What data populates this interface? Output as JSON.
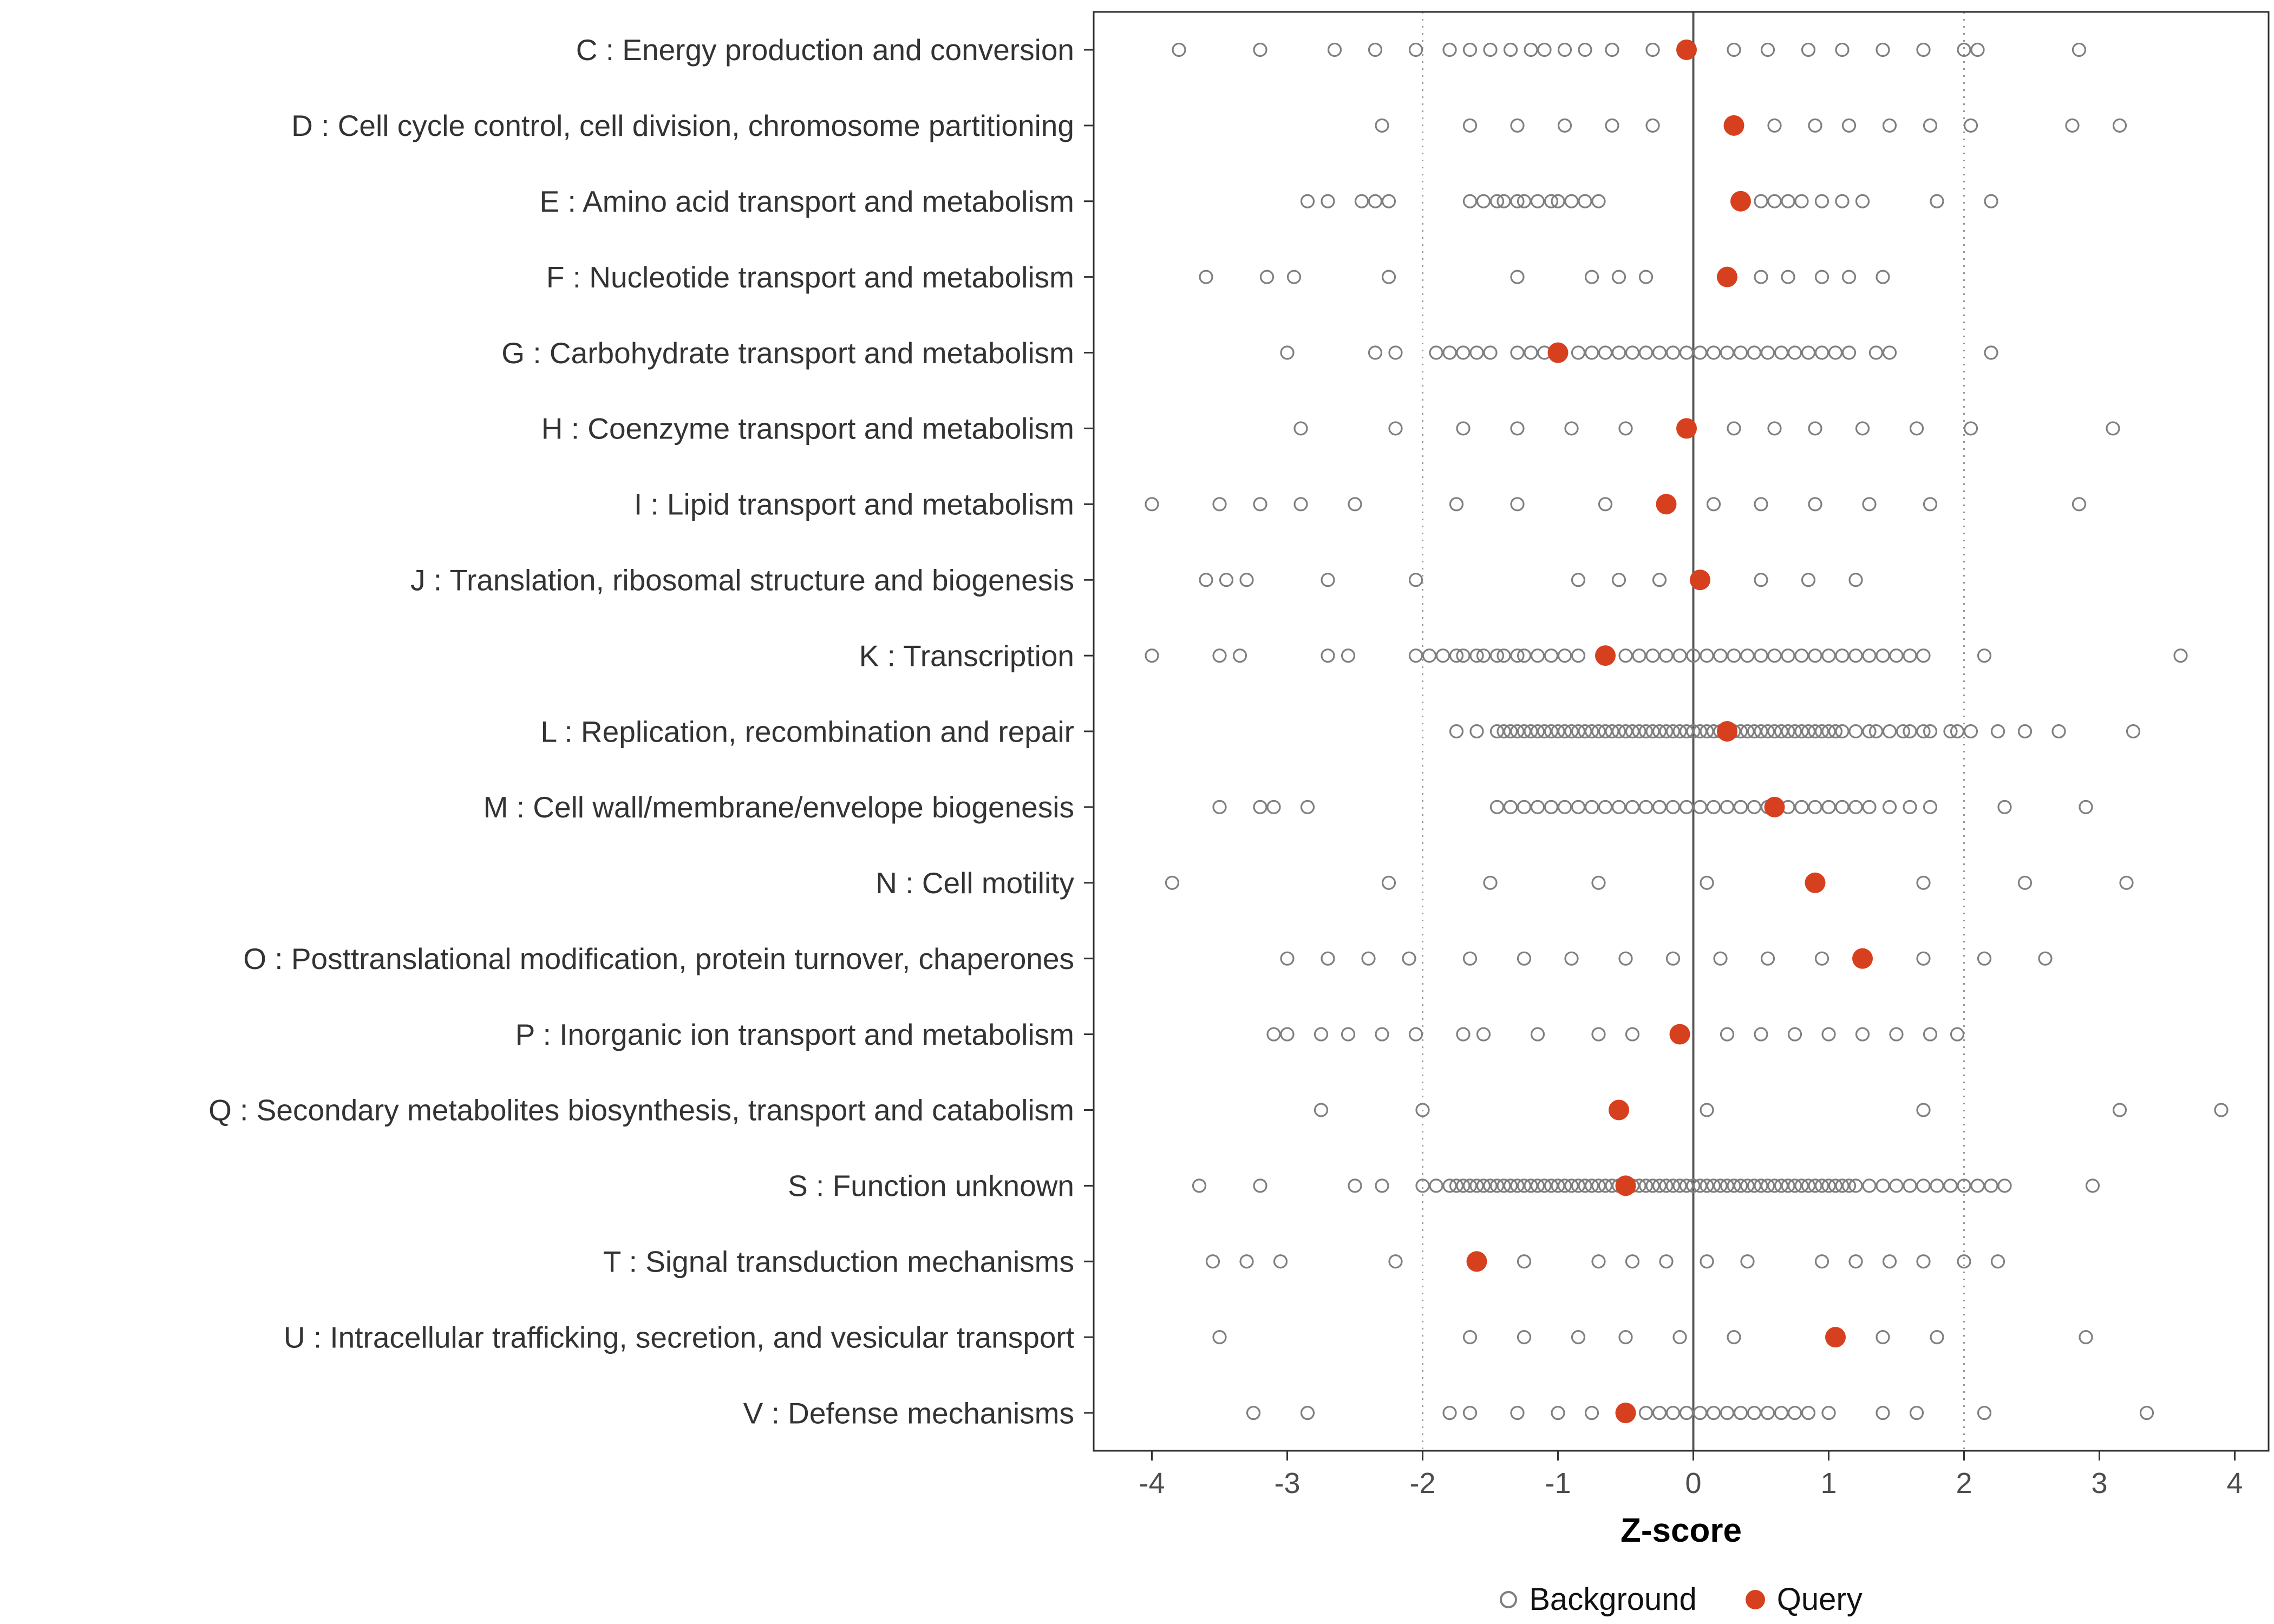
{
  "chart_data": {
    "type": "scatter",
    "title": "",
    "xlabel": "Z-score",
    "xlim": [
      -4.43,
      4.25
    ],
    "xticks": [
      -4,
      -3,
      -2,
      -1,
      0,
      1,
      2,
      3,
      4
    ],
    "reference_lines": {
      "solid": [
        0
      ],
      "dotted": [
        -2,
        2
      ]
    },
    "colors": {
      "background": "#7f7f7f",
      "query": "#d7401e",
      "axis_text": "#4d4d4d",
      "label_text": "#333333",
      "panel_border": "#2f2f2f",
      "zero_line": "#555555",
      "dotted_line": "#999999"
    },
    "legend": [
      {
        "label": "Background",
        "marker": "open-circle"
      },
      {
        "label": "Query",
        "marker": "filled-circle"
      }
    ],
    "legend_position": "bottom",
    "grid": "off",
    "categories": [
      {
        "label": "C : Energy production and conversion",
        "query": -0.05,
        "background": [
          -3.8,
          -3.2,
          -2.65,
          -2.35,
          -2.05,
          -1.8,
          -1.65,
          -1.5,
          -1.35,
          -1.2,
          -1.1,
          -0.95,
          -0.8,
          -0.6,
          -0.3,
          0.3,
          0.55,
          0.85,
          1.1,
          1.4,
          1.7,
          2.0,
          2.1,
          2.85
        ]
      },
      {
        "label": "D : Cell cycle control, cell division, chromosome partitioning",
        "query": 0.3,
        "background": [
          -2.3,
          -1.65,
          -1.3,
          -0.95,
          -0.6,
          -0.3,
          0.6,
          0.9,
          1.15,
          1.45,
          1.75,
          2.05,
          2.8,
          3.15
        ]
      },
      {
        "label": "E : Amino acid transport and metabolism",
        "query": 0.35,
        "background": [
          -2.85,
          -2.7,
          -2.45,
          -2.35,
          -2.25,
          -1.65,
          -1.55,
          -1.45,
          -1.4,
          -1.3,
          -1.25,
          -1.15,
          -1.05,
          -1.0,
          -0.9,
          -0.8,
          -0.7,
          0.5,
          0.6,
          0.7,
          0.8,
          0.95,
          1.1,
          1.25,
          1.8,
          2.2
        ]
      },
      {
        "label": "F : Nucleotide transport and metabolism",
        "query": 0.25,
        "background": [
          -3.6,
          -3.15,
          -2.95,
          -2.25,
          -1.3,
          -0.75,
          -0.55,
          -0.35,
          0.5,
          0.7,
          0.95,
          1.15,
          1.4
        ]
      },
      {
        "label": "G : Carbohydrate transport and metabolism",
        "query": -1.0,
        "background": [
          -3.0,
          -2.35,
          -2.2,
          -1.9,
          -1.8,
          -1.7,
          -1.6,
          -1.5,
          -1.3,
          -1.2,
          -1.1,
          -0.85,
          -0.75,
          -0.65,
          -0.55,
          -0.45,
          -0.35,
          -0.25,
          -0.15,
          -0.05,
          0.05,
          0.15,
          0.25,
          0.35,
          0.45,
          0.55,
          0.65,
          0.75,
          0.85,
          0.95,
          1.05,
          1.15,
          1.35,
          1.45,
          2.2
        ]
      },
      {
        "label": "H : Coenzyme transport and metabolism",
        "query": -0.05,
        "background": [
          -2.9,
          -2.2,
          -1.7,
          -1.3,
          -0.9,
          -0.5,
          0.3,
          0.6,
          0.9,
          1.25,
          1.65,
          2.05,
          3.1
        ]
      },
      {
        "label": "I : Lipid transport and metabolism",
        "query": -0.2,
        "background": [
          -4.0,
          -3.5,
          -3.2,
          -2.9,
          -2.5,
          -1.75,
          -1.3,
          -0.65,
          0.15,
          0.5,
          0.9,
          1.3,
          1.75,
          2.85
        ]
      },
      {
        "label": "J : Translation, ribosomal structure and biogenesis",
        "query": 0.05,
        "background": [
          -3.6,
          -3.45,
          -3.3,
          -2.7,
          -2.05,
          -0.85,
          -0.55,
          -0.25,
          0.5,
          0.85,
          1.2
        ]
      },
      {
        "label": "K : Transcription",
        "query": -0.65,
        "background": [
          -4.0,
          -3.5,
          -3.35,
          -2.7,
          -2.55,
          -2.05,
          -1.95,
          -1.85,
          -1.75,
          -1.7,
          -1.6,
          -1.55,
          -1.45,
          -1.4,
          -1.3,
          -1.25,
          -1.15,
          -1.05,
          -0.95,
          -0.85,
          -0.5,
          -0.4,
          -0.3,
          -0.2,
          -0.1,
          0.0,
          0.1,
          0.2,
          0.3,
          0.4,
          0.5,
          0.6,
          0.7,
          0.8,
          0.9,
          1.0,
          1.1,
          1.2,
          1.3,
          1.4,
          1.5,
          1.6,
          1.7,
          2.15,
          3.6
        ]
      },
      {
        "label": "L : Replication, recombination and repair",
        "query": 0.25,
        "background": [
          -1.75,
          -1.6,
          -1.45,
          -1.4,
          -1.35,
          -1.3,
          -1.25,
          -1.2,
          -1.15,
          -1.1,
          -1.05,
          -1.0,
          -0.95,
          -0.9,
          -0.85,
          -0.8,
          -0.75,
          -0.7,
          -0.65,
          -0.6,
          -0.55,
          -0.5,
          -0.45,
          -0.4,
          -0.35,
          -0.3,
          -0.25,
          -0.2,
          -0.15,
          -0.1,
          -0.05,
          0.0,
          0.05,
          0.1,
          0.15,
          0.2,
          0.3,
          0.35,
          0.4,
          0.45,
          0.5,
          0.55,
          0.6,
          0.65,
          0.7,
          0.75,
          0.8,
          0.85,
          0.9,
          0.95,
          1.0,
          1.05,
          1.1,
          1.2,
          1.3,
          1.35,
          1.45,
          1.55,
          1.6,
          1.7,
          1.75,
          1.9,
          1.95,
          2.05,
          2.25,
          2.45,
          2.7,
          3.25
        ]
      },
      {
        "label": "M : Cell wall/membrane/envelope biogenesis",
        "query": 0.6,
        "background": [
          -3.5,
          -3.2,
          -3.1,
          -2.85,
          -1.45,
          -1.35,
          -1.25,
          -1.15,
          -1.05,
          -0.95,
          -0.85,
          -0.75,
          -0.65,
          -0.55,
          -0.45,
          -0.35,
          -0.25,
          -0.15,
          -0.05,
          0.05,
          0.15,
          0.25,
          0.35,
          0.45,
          0.55,
          0.7,
          0.8,
          0.9,
          1.0,
          1.1,
          1.2,
          1.3,
          1.45,
          1.6,
          1.75,
          2.3,
          2.9
        ]
      },
      {
        "label": "N : Cell motility",
        "query": 0.9,
        "background": [
          -3.85,
          -2.25,
          -1.5,
          -0.7,
          0.1,
          1.7,
          2.45,
          3.2
        ]
      },
      {
        "label": "O : Posttranslational modification, protein turnover, chaperones",
        "query": 1.25,
        "background": [
          -3.0,
          -2.7,
          -2.4,
          -2.1,
          -1.65,
          -1.25,
          -0.9,
          -0.5,
          -0.15,
          0.2,
          0.55,
          0.95,
          1.7,
          2.15,
          2.6
        ]
      },
      {
        "label": "P : Inorganic ion transport and metabolism",
        "query": -0.1,
        "background": [
          -3.1,
          -3.0,
          -2.75,
          -2.55,
          -2.3,
          -2.05,
          -1.7,
          -1.55,
          -1.15,
          -0.7,
          -0.45,
          0.25,
          0.5,
          0.75,
          1.0,
          1.25,
          1.5,
          1.75,
          1.95
        ]
      },
      {
        "label": "Q : Secondary metabolites biosynthesis, transport and catabolism",
        "query": -0.55,
        "background": [
          -2.75,
          -2.0,
          0.1,
          1.7,
          3.15,
          3.9
        ]
      },
      {
        "label": "S : Function unknown",
        "query": -0.5,
        "background": [
          -3.65,
          -3.2,
          -2.5,
          -2.3,
          -2.0,
          -1.9,
          -1.8,
          -1.75,
          -1.7,
          -1.65,
          -1.6,
          -1.55,
          -1.5,
          -1.45,
          -1.4,
          -1.35,
          -1.3,
          -1.25,
          -1.2,
          -1.15,
          -1.1,
          -1.05,
          -1.0,
          -0.95,
          -0.9,
          -0.85,
          -0.8,
          -0.75,
          -0.7,
          -0.65,
          -0.6,
          -0.55,
          -0.45,
          -0.4,
          -0.35,
          -0.3,
          -0.25,
          -0.2,
          -0.15,
          -0.1,
          -0.05,
          0.0,
          0.05,
          0.1,
          0.15,
          0.2,
          0.25,
          0.3,
          0.35,
          0.4,
          0.45,
          0.5,
          0.55,
          0.6,
          0.65,
          0.7,
          0.75,
          0.8,
          0.85,
          0.9,
          0.95,
          1.0,
          1.05,
          1.1,
          1.15,
          1.2,
          1.3,
          1.4,
          1.5,
          1.6,
          1.7,
          1.8,
          1.9,
          2.0,
          2.1,
          2.2,
          2.3,
          2.95
        ]
      },
      {
        "label": "T : Signal transduction mechanisms",
        "query": -1.6,
        "background": [
          -3.55,
          -3.3,
          -3.05,
          -2.2,
          -1.25,
          -0.7,
          -0.45,
          -0.2,
          0.1,
          0.4,
          0.95,
          1.2,
          1.45,
          1.7,
          2.0,
          2.25
        ]
      },
      {
        "label": "U : Intracellular trafficking, secretion, and vesicular transport",
        "query": 1.05,
        "background": [
          -3.5,
          -1.65,
          -1.25,
          -0.85,
          -0.5,
          -0.1,
          0.3,
          1.4,
          1.8,
          2.9
        ]
      },
      {
        "label": "V : Defense mechanisms",
        "query": -0.5,
        "background": [
          -3.25,
          -2.85,
          -1.8,
          -1.65,
          -1.3,
          -1.0,
          -0.75,
          -0.35,
          -0.25,
          -0.15,
          -0.05,
          0.05,
          0.15,
          0.25,
          0.35,
          0.45,
          0.55,
          0.65,
          0.75,
          0.85,
          1.0,
          1.4,
          1.65,
          2.15,
          3.35
        ]
      }
    ]
  }
}
